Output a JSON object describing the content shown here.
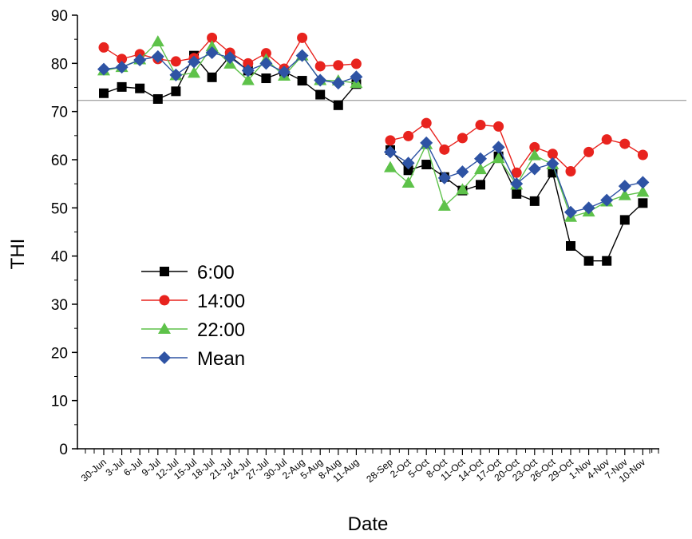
{
  "chart_data": {
    "type": "line",
    "xlabel": "Date",
    "ylabel": "THI",
    "ylim": [
      0,
      90
    ],
    "yticks": [
      0,
      10,
      20,
      30,
      40,
      50,
      60,
      70,
      80,
      90
    ],
    "reference_line_y": 72.3,
    "legend_position": "lower-left",
    "categories": [
      "30-Jun",
      "3-Jul",
      "6-Jul",
      "9-Jul",
      "12-Jul",
      "15-Jul",
      "18-Jul",
      "21-Jul",
      "24-Jul",
      "27-Jul",
      "30-Jul",
      "2-Aug",
      "5-Aug",
      "8-Aug",
      "11-Aug",
      "28-Sep",
      "2-Oct",
      "5-Oct",
      "8-Oct",
      "11-Oct",
      "14-Oct",
      "17-Oct",
      "20-Oct",
      "23-Oct",
      "26-Oct",
      "29-Oct",
      "1-Nov",
      "4-Nov",
      "7-Nov",
      "10-Nov"
    ],
    "series": [
      {
        "name": "6:00",
        "color": "#000000",
        "marker": "square",
        "line_color": "#000000",
        "values": [
          73.8,
          75.1,
          74.8,
          72.6,
          74.2,
          81.6,
          77.1,
          81.5,
          78.5,
          76.9,
          78.3,
          76.4,
          73.5,
          71.3,
          75.7,
          62.0,
          57.8,
          59.0,
          56.4,
          53.6,
          54.8,
          60.7,
          52.9,
          51.4,
          57.3,
          42.1,
          39.0,
          39.0,
          47.5,
          51.0
        ]
      },
      {
        "name": "14:00",
        "color": "#e8231e",
        "marker": "circle",
        "line_color": "#e8231e",
        "values": [
          83.3,
          80.9,
          81.9,
          80.9,
          80.4,
          81.1,
          85.3,
          82.2,
          80.0,
          82.1,
          78.9,
          85.3,
          79.4,
          79.6,
          79.9,
          64.0,
          64.9,
          67.6,
          62.1,
          64.5,
          67.2,
          66.9,
          57.3,
          62.6,
          61.2,
          57.6,
          61.6,
          64.2,
          63.3,
          61.0
        ]
      },
      {
        "name": "22:00",
        "color": "#5ec24a",
        "marker": "triangle",
        "line_color": "#5ec24a",
        "values": [
          78.5,
          79.2,
          80.8,
          84.5,
          77.5,
          78.0,
          83.5,
          79.9,
          76.5,
          80.8,
          77.4,
          81.6,
          76.5,
          76.4,
          75.9,
          58.4,
          55.2,
          63.2,
          50.4,
          53.8,
          58.0,
          60.3,
          54.8,
          60.9,
          59.0,
          48.1,
          49.2,
          51.3,
          52.6,
          53.3
        ]
      },
      {
        "name": "Mean",
        "color": "#2e53a4",
        "marker": "diamond",
        "line_color": "#2e53a4",
        "values": [
          78.8,
          79.2,
          80.7,
          81.4,
          77.6,
          80.3,
          82.2,
          81.2,
          78.5,
          80.0,
          78.2,
          81.6,
          76.5,
          75.9,
          77.2,
          61.6,
          59.3,
          63.5,
          56.2,
          57.5,
          60.2,
          62.6,
          55.0,
          58.1,
          59.2,
          49.1,
          50.0,
          51.6,
          54.5,
          55.3
        ]
      }
    ]
  }
}
